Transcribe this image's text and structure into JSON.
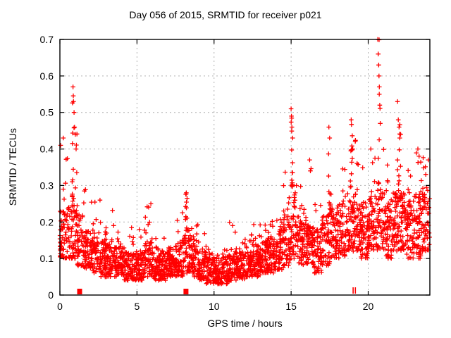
{
  "chart_data": {
    "type": "scatter",
    "title": "Day 056 of 2015, SRMTID for receiver p021",
    "xlabel": "GPS time / hours",
    "ylabel": "SRMTID / TECUs",
    "xlim": [
      0,
      24
    ],
    "ylim": [
      0,
      0.7
    ],
    "xticks": [
      0,
      5,
      10,
      15,
      20
    ],
    "yticks": [
      "0",
      "0.1",
      "0.2",
      "0.3",
      "0.4",
      "0.5",
      "0.6",
      "0.7"
    ],
    "grid": true,
    "grid_style": "dashed",
    "legend": "none",
    "marker": "plus",
    "marker_color": "#ff0000",
    "grid_color": "#b0b0b0",
    "border_color": "#000000",
    "background_color": "#ffffff",
    "seed": 2015056,
    "points_note": "dense 30s-cadence scatter; density_profile bins are [hour_start, hour_end, n_points, band_low, band_high, tail_max, tail_prob, optional_spike_hour] in TECUs read from gridlines",
    "density_profile": [
      [
        0.0,
        0.5,
        60,
        0.1,
        0.23,
        0.43,
        0.08
      ],
      [
        0.5,
        1.0,
        60,
        0.1,
        0.25,
        0.57,
        0.15,
        0.85
      ],
      [
        1.0,
        1.5,
        60,
        0.08,
        0.22,
        0.5,
        0.12,
        1.05
      ],
      [
        1.5,
        2.0,
        60,
        0.07,
        0.18,
        0.3,
        0.08
      ],
      [
        2.0,
        2.5,
        60,
        0.06,
        0.16,
        0.26,
        0.08
      ],
      [
        2.5,
        3.0,
        60,
        0.05,
        0.15,
        0.27,
        0.08
      ],
      [
        3.0,
        3.5,
        60,
        0.05,
        0.14,
        0.25,
        0.06
      ],
      [
        3.5,
        4.0,
        60,
        0.05,
        0.13,
        0.18,
        0.06
      ],
      [
        4.0,
        4.5,
        60,
        0.04,
        0.13,
        0.21,
        0.06
      ],
      [
        4.5,
        5.0,
        60,
        0.04,
        0.12,
        0.2,
        0.06
      ],
      [
        5.0,
        5.5,
        60,
        0.04,
        0.12,
        0.18,
        0.06
      ],
      [
        5.5,
        6.0,
        60,
        0.05,
        0.15,
        0.25,
        0.08
      ],
      [
        6.0,
        6.5,
        60,
        0.04,
        0.13,
        0.2,
        0.06
      ],
      [
        6.5,
        7.0,
        60,
        0.04,
        0.12,
        0.18,
        0.06
      ],
      [
        7.0,
        7.5,
        60,
        0.05,
        0.13,
        0.2,
        0.06
      ],
      [
        7.5,
        8.0,
        60,
        0.05,
        0.16,
        0.23,
        0.08
      ],
      [
        8.0,
        8.5,
        60,
        0.06,
        0.18,
        0.28,
        0.12,
        8.2
      ],
      [
        8.5,
        9.0,
        60,
        0.05,
        0.14,
        0.2,
        0.06
      ],
      [
        9.0,
        9.5,
        60,
        0.04,
        0.12,
        0.17,
        0.06
      ],
      [
        9.5,
        10.0,
        60,
        0.03,
        0.11,
        0.15,
        0.05
      ],
      [
        10.0,
        10.5,
        60,
        0.03,
        0.1,
        0.14,
        0.05
      ],
      [
        10.5,
        11.0,
        60,
        0.03,
        0.11,
        0.16,
        0.05
      ],
      [
        11.0,
        11.5,
        60,
        0.04,
        0.12,
        0.2,
        0.05
      ],
      [
        11.5,
        12.0,
        60,
        0.04,
        0.12,
        0.16,
        0.05
      ],
      [
        12.0,
        12.5,
        60,
        0.05,
        0.13,
        0.17,
        0.05
      ],
      [
        12.5,
        13.0,
        60,
        0.05,
        0.14,
        0.2,
        0.06
      ],
      [
        13.0,
        13.5,
        60,
        0.06,
        0.15,
        0.22,
        0.06
      ],
      [
        13.5,
        14.0,
        60,
        0.06,
        0.16,
        0.25,
        0.08
      ],
      [
        14.0,
        14.5,
        60,
        0.07,
        0.18,
        0.27,
        0.08
      ],
      [
        14.5,
        15.0,
        60,
        0.08,
        0.22,
        0.35,
        0.1
      ],
      [
        15.0,
        15.5,
        60,
        0.1,
        0.3,
        0.51,
        0.18,
        15.05
      ],
      [
        15.5,
        16.0,
        60,
        0.08,
        0.22,
        0.3,
        0.08
      ],
      [
        16.0,
        16.5,
        60,
        0.08,
        0.2,
        0.37,
        0.1,
        16.25
      ],
      [
        16.5,
        17.0,
        60,
        0.06,
        0.18,
        0.25,
        0.08
      ],
      [
        17.0,
        17.5,
        60,
        0.08,
        0.22,
        0.46,
        0.1,
        17.45
      ],
      [
        17.5,
        18.0,
        60,
        0.1,
        0.25,
        0.42,
        0.1
      ],
      [
        18.0,
        18.5,
        60,
        0.1,
        0.25,
        0.35,
        0.08
      ],
      [
        18.5,
        19.0,
        60,
        0.12,
        0.28,
        0.48,
        0.1,
        18.9
      ],
      [
        19.0,
        19.5,
        60,
        0.12,
        0.28,
        0.45,
        0.08
      ],
      [
        19.5,
        20.0,
        60,
        0.1,
        0.25,
        0.38,
        0.08
      ],
      [
        20.0,
        20.5,
        60,
        0.12,
        0.27,
        0.42,
        0.08
      ],
      [
        20.5,
        21.0,
        60,
        0.12,
        0.3,
        0.7,
        0.15,
        20.7
      ],
      [
        21.0,
        21.5,
        60,
        0.1,
        0.27,
        0.4,
        0.08
      ],
      [
        21.5,
        22.0,
        60,
        0.12,
        0.28,
        0.53,
        0.12,
        21.95
      ],
      [
        22.0,
        22.5,
        60,
        0.12,
        0.28,
        0.47,
        0.1,
        22.05
      ],
      [
        22.5,
        23.0,
        60,
        0.1,
        0.26,
        0.38,
        0.08
      ],
      [
        23.0,
        23.5,
        60,
        0.1,
        0.28,
        0.4,
        0.08
      ],
      [
        23.5,
        24.0,
        60,
        0.12,
        0.3,
        0.38,
        0.08
      ]
    ],
    "notable_points": [
      [
        0.05,
        0.41
      ],
      [
        0.22,
        0.43
      ],
      [
        0.85,
        0.57
      ],
      [
        0.88,
        0.53
      ],
      [
        0.92,
        0.5
      ],
      [
        0.95,
        0.46
      ],
      [
        1.0,
        0.44
      ],
      [
        1.05,
        0.4
      ],
      [
        2.6,
        0.26
      ],
      [
        5.9,
        0.25
      ],
      [
        8.2,
        0.28
      ],
      [
        8.25,
        0.265
      ],
      [
        15.0,
        0.51
      ],
      [
        15.02,
        0.49
      ],
      [
        15.05,
        0.46
      ],
      [
        15.1,
        0.43
      ],
      [
        16.2,
        0.37
      ],
      [
        16.25,
        0.34
      ],
      [
        17.45,
        0.46
      ],
      [
        17.5,
        0.43
      ],
      [
        18.9,
        0.48
      ],
      [
        19.0,
        0.4
      ],
      [
        20.62,
        0.7
      ],
      [
        20.65,
        0.66
      ],
      [
        20.68,
        0.63
      ],
      [
        20.7,
        0.6
      ],
      [
        20.72,
        0.57
      ],
      [
        20.75,
        0.52
      ],
      [
        20.78,
        0.47
      ],
      [
        21.9,
        0.53
      ],
      [
        21.95,
        0.48
      ],
      [
        22.0,
        0.46
      ],
      [
        22.05,
        0.43
      ],
      [
        23.3,
        0.38
      ],
      [
        23.9,
        0.37
      ]
    ],
    "zero_markers": {
      "squares": [
        1.28,
        8.18
      ],
      "bars": [
        19.02,
        19.17
      ]
    }
  }
}
